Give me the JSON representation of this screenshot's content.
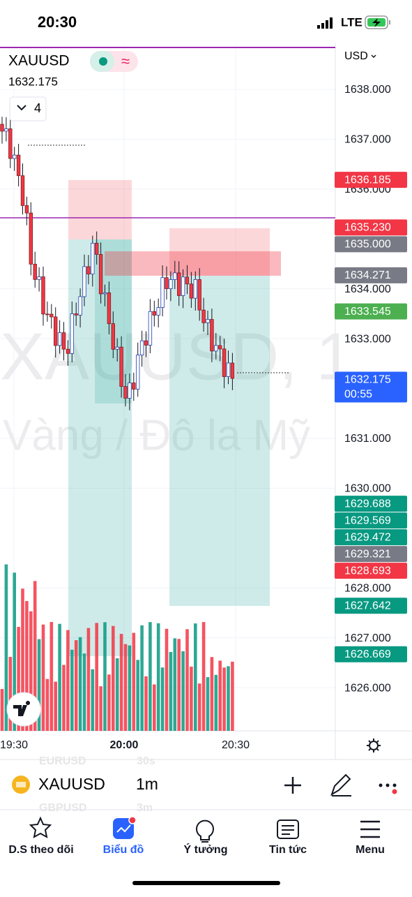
{
  "status_bar": {
    "time": "20:30",
    "network": "LTE"
  },
  "chart": {
    "symbol": "XAUUSD",
    "price": "1632.175",
    "interval_count": "4",
    "currency": "USD",
    "watermark": {
      "symbol": "XAUUSD, 1",
      "description": "Vàng / Đô la Mỹ"
    },
    "price_axis": [
      {
        "value": 1638,
        "label": "1638.000"
      },
      {
        "value": 1637,
        "label": "1637.000"
      },
      {
        "value": 1636,
        "label": "1636.000"
      },
      {
        "value": 1634,
        "label": "1634.000"
      },
      {
        "value": 1633,
        "label": "1633.000"
      },
      {
        "value": 1631,
        "label": "1631.000"
      },
      {
        "value": 1630,
        "label": "1630.000"
      },
      {
        "value": 1628,
        "label": "1628.000"
      },
      {
        "value": 1627,
        "label": "1627.000"
      },
      {
        "value": 1626,
        "label": "1626.000"
      }
    ],
    "price_badges": [
      {
        "value": 1636.185,
        "label": "1636.185",
        "color": "#f23645"
      },
      {
        "value": 1635.23,
        "label": "1635.230",
        "color": "#f23645"
      },
      {
        "value": 1635,
        "label": "1635.000",
        "color": "#787b86"
      },
      {
        "value": 1634.271,
        "label": "1634.271",
        "color": "#787b86"
      },
      {
        "value": 1633.545,
        "label": "1633.545",
        "color": "#4caf50"
      },
      {
        "value": 1632.175,
        "label": "1632.175",
        "countdown": "00:55",
        "color": "#2962ff"
      },
      {
        "value": 1629.688,
        "label": "1629.688",
        "color": "#089981"
      },
      {
        "value": 1629.569,
        "label": "1629.569",
        "color": "#089981"
      },
      {
        "value": 1629.472,
        "label": "1629.472",
        "color": "#089981"
      },
      {
        "value": 1629.321,
        "label": "1629.321",
        "color": "#787b86"
      },
      {
        "value": 1628.693,
        "label": "1628.693",
        "color": "#f23645"
      },
      {
        "value": 1627.642,
        "label": "1627.642",
        "color": "#089981"
      },
      {
        "value": 1626.669,
        "label": "1626.669",
        "color": "#089981"
      }
    ],
    "time_axis": [
      "19:30",
      "20:00",
      "20:30"
    ]
  },
  "toolbar": {
    "symbol": "XAUUSD",
    "interval": "1m",
    "behind_list": [
      "EURUSD",
      "30s",
      "GBPUSD",
      "3m"
    ]
  },
  "tab_bar": [
    "D.S theo dõi",
    "Biểu đồ",
    "Ý tưởng",
    "Tin tức",
    "Menu"
  ]
}
